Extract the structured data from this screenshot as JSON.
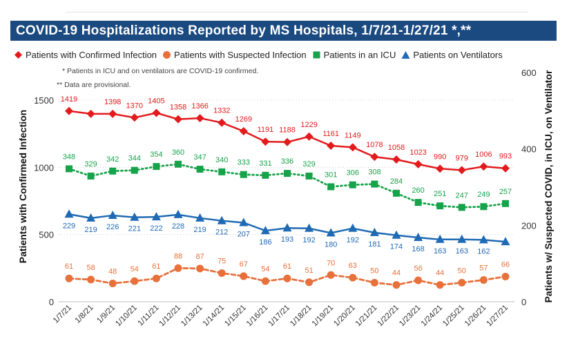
{
  "title": "COVID-19 Hospitalizations Reported by MS Hospitals, 1/7/21-1/27/21 *,**",
  "notes": {
    "note1": "* Patients in ICU and on ventilators are COVID-19 confirmed.",
    "note2": "** Data are provisional."
  },
  "legend": [
    {
      "label": "Patients with Confirmed Infection",
      "color": "#e31a1c",
      "icon": "diamond-icon"
    },
    {
      "label": "Patients with Suspected Infection",
      "color": "#e8703a",
      "icon": "circle-icon"
    },
    {
      "label": "Patients in an ICU",
      "color": "#16a34a",
      "icon": "square-icon"
    },
    {
      "label": "Patients on Ventilators",
      "color": "#1f6ab4",
      "icon": "triangle-icon"
    }
  ],
  "chart_data": {
    "type": "line",
    "title": "COVID-19 Hospitalizations Reported by MS Hospitals, 1/7/21-1/27/21 *,**",
    "xlabel": "",
    "ylabel": "Patients with Confirmed Infection",
    "ylabel_right": "Patients w/ Suspected COVID, in ICU, on Ventilator",
    "ylim": [
      0,
      1500
    ],
    "ylim_right": [
      0,
      600
    ],
    "yticks": [
      "0",
      "500",
      "1000",
      "1500"
    ],
    "yticks_right": [
      "0",
      "200",
      "400",
      "600"
    ],
    "legend_position": "top-left",
    "grid": true,
    "categories": [
      "1/7/21",
      "1/8/21",
      "1/9/21",
      "1/10/21",
      "1/11/21",
      "1/12/21",
      "1/13/21",
      "1/14/21",
      "1/15/21",
      "1/16/21",
      "1/17/21",
      "1/18/21",
      "1/19/21",
      "1/20/21",
      "1/21/21",
      "1/22/21",
      "1/23/21",
      "1/24/21",
      "1/25/21",
      "1/26/21",
      "1/27/21"
    ],
    "series": [
      {
        "name": "Patients with Confirmed Infection",
        "axis": "left",
        "color": "#e31a1c",
        "marker": "diamond",
        "dash": "solid",
        "values": [
          1419,
          1398,
          1398,
          1370,
          1405,
          1358,
          1366,
          1332,
          1269,
          1191,
          1188,
          1229,
          1161,
          1149,
          1078,
          1058,
          1023,
          990,
          979,
          1006,
          993
        ],
        "labels": [
          "1419",
          "",
          "1398",
          "1370",
          "1405",
          "1358",
          "1366",
          "1332",
          "1269",
          "1191",
          "1188",
          "1229",
          "1161",
          "1149",
          "1078",
          "1058",
          "1023",
          "990",
          "979",
          "1006",
          "993"
        ]
      },
      {
        "name": "Patients with Suspected Infection",
        "axis": "right",
        "color": "#e8703a",
        "marker": "circle",
        "dash": "dashed",
        "values": [
          61,
          58,
          48,
          54,
          61,
          88,
          87,
          75,
          67,
          54,
          61,
          51,
          70,
          63,
          50,
          44,
          56,
          44,
          50,
          57,
          66
        ],
        "labels": [
          "61",
          "58",
          "48",
          "54",
          "61",
          "88",
          "87",
          "75",
          "67",
          "54",
          "61",
          "51",
          "70",
          "63",
          "50",
          "44",
          "56",
          "44",
          "50",
          "57",
          "66"
        ]
      },
      {
        "name": "Patients in an ICU",
        "axis": "right",
        "color": "#16a34a",
        "marker": "square",
        "dash": "dotted",
        "values": [
          348,
          329,
          342,
          344,
          354,
          360,
          347,
          340,
          333,
          331,
          336,
          329,
          301,
          306,
          308,
          284,
          260,
          251,
          247,
          249,
          257
        ],
        "labels": [
          "348",
          "329",
          "342",
          "344",
          "354",
          "360",
          "347",
          "340",
          "333",
          "331",
          "336",
          "329",
          "301",
          "306",
          "308",
          "284",
          "260",
          "251",
          "247",
          "249",
          "257"
        ]
      },
      {
        "name": "Patients on Ventilators",
        "axis": "right",
        "color": "#1f6ab4",
        "marker": "triangle",
        "dash": "solid",
        "values": [
          229,
          219,
          226,
          221,
          222,
          228,
          219,
          212,
          207,
          186,
          193,
          192,
          180,
          192,
          181,
          174,
          168,
          163,
          163,
          162,
          157
        ],
        "labels": [
          "229",
          "219",
          "226",
          "221",
          "222",
          "228",
          "219",
          "212",
          "207",
          "186",
          "193",
          "192",
          "180",
          "192",
          "181",
          "174",
          "168",
          "163",
          "163",
          "162",
          ""
        ]
      }
    ]
  }
}
